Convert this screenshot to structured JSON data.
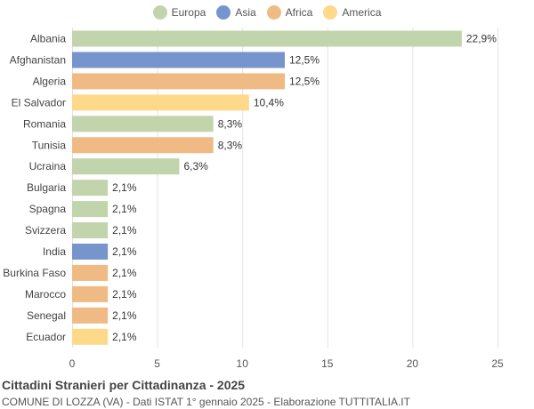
{
  "colors": {
    "Europa": "#c2d4ab",
    "Asia": "#7795cd",
    "Africa": "#f0ba85",
    "America": "#fed989"
  },
  "legend": [
    "Europa",
    "Asia",
    "Africa",
    "America"
  ],
  "title": "Cittadini Stranieri per Cittadinanza - 2025",
  "subtitle": "COMUNE DI LOZZA (VA) - Dati ISTAT 1° gennaio 2025 - Elaborazione TUTTITALIA.IT",
  "chart_data": {
    "type": "bar",
    "orientation": "horizontal",
    "title": "Cittadini Stranieri per Cittadinanza - 2025",
    "xlim": [
      0,
      25
    ],
    "xticks": [
      0,
      5,
      10,
      15,
      20,
      25
    ],
    "grid": true,
    "legend_position": "top",
    "categories": [
      "Albania",
      "Afghanistan",
      "Algeria",
      "El Salvador",
      "Romania",
      "Tunisia",
      "Ucraina",
      "Bulgaria",
      "Spagna",
      "Svizzera",
      "India",
      "Burkina Faso",
      "Marocco",
      "Senegal",
      "Ecuador"
    ],
    "values": [
      22.9,
      12.5,
      12.5,
      10.4,
      8.3,
      8.3,
      6.3,
      2.1,
      2.1,
      2.1,
      2.1,
      2.1,
      2.1,
      2.1,
      2.1
    ],
    "labels": [
      "22,9%",
      "12,5%",
      "12,5%",
      "10,4%",
      "8,3%",
      "8,3%",
      "6,3%",
      "2,1%",
      "2,1%",
      "2,1%",
      "2,1%",
      "2,1%",
      "2,1%",
      "2,1%",
      "2,1%"
    ],
    "groups": [
      "Europa",
      "Asia",
      "Africa",
      "America",
      "Europa",
      "Africa",
      "Europa",
      "Europa",
      "Europa",
      "Europa",
      "Asia",
      "Africa",
      "Africa",
      "Africa",
      "America"
    ]
  }
}
